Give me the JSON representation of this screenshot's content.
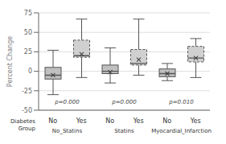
{
  "chart_data": {
    "type": "box",
    "ylabel": "Percent Change",
    "categories": [
      "No",
      "Yes",
      "No",
      "Yes",
      "No",
      "Yes"
    ],
    "group_labels": [
      "No_Statins",
      "Statins",
      "Myocardial_Infarction"
    ],
    "group_title": "Diabetes\nGroup",
    "annotations": [
      "p=0.000",
      "p=0.000",
      "p=0.010"
    ],
    "marker": "x",
    "boxes": [
      {
        "whisker_low": -30,
        "q1": -10,
        "median": -5,
        "mean": -5,
        "q3": 5,
        "whisker_high": 27,
        "line_style": "solid",
        "color": "#c0c0c0"
      },
      {
        "whisker_low": -8,
        "q1": 18,
        "median": 20,
        "mean": 22,
        "q3": 40,
        "whisker_high": 67,
        "line_style": "dashed",
        "color": "#d0d0d0"
      },
      {
        "whisker_low": -15,
        "q1": -3,
        "median": 0,
        "mean": -1,
        "q3": 8,
        "whisker_high": 30,
        "line_style": "solid",
        "color": "#c0c0c0"
      },
      {
        "whisker_low": -5,
        "q1": 8,
        "median": 10,
        "mean": 15,
        "q3": 28,
        "whisker_high": 67,
        "line_style": "dashed",
        "color": "#d0d0d0"
      },
      {
        "whisker_low": -12,
        "q1": -7,
        "median": -3,
        "mean": -3,
        "q3": 3,
        "whisker_high": 10,
        "line_style": "solid",
        "color": "#c0c0c0"
      },
      {
        "whisker_low": -8,
        "q1": 12,
        "median": 17,
        "mean": 17,
        "q3": 32,
        "whisker_high": 42,
        "line_style": "dashed",
        "color": "#d0d0d0"
      }
    ],
    "ylim": [
      -50,
      75
    ],
    "yticks": [
      -50,
      -25,
      0,
      25,
      50,
      75
    ],
    "grid": true
  }
}
